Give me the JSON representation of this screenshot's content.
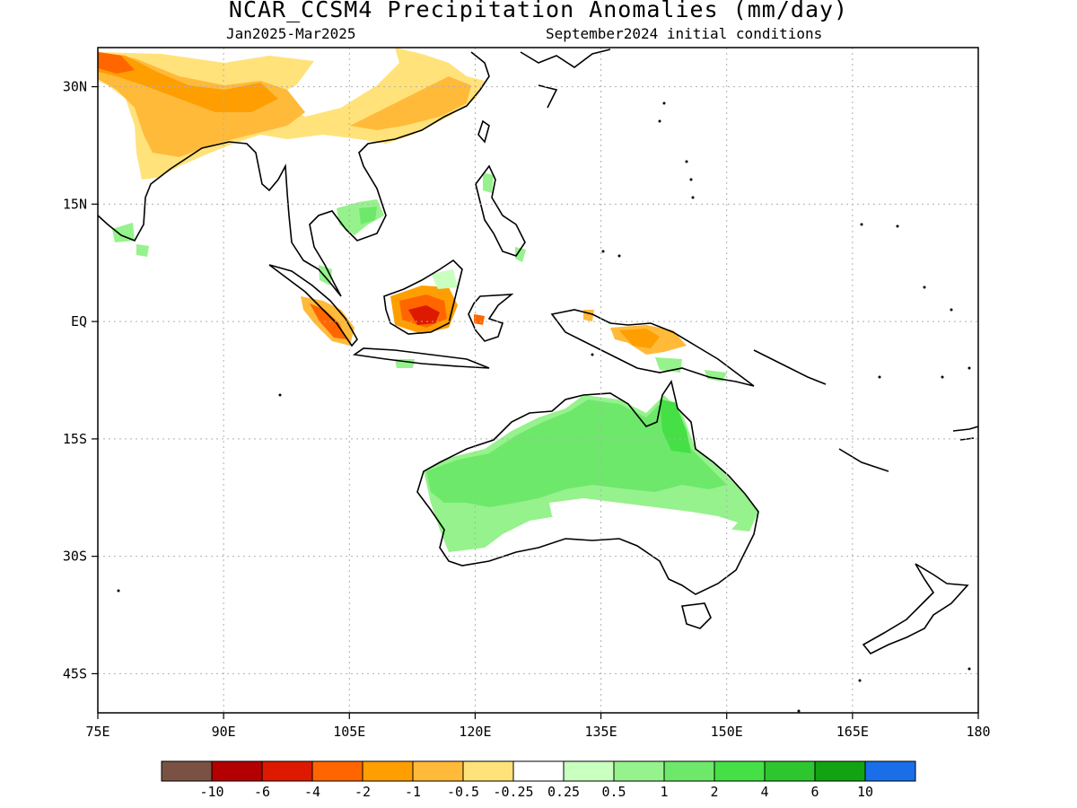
{
  "title": "NCAR_CCSM4 Precipitation Anomalies (mm/day)",
  "subtitle_left": "Jan2025-Mar2025",
  "subtitle_right": "September2024 initial conditions",
  "map": {
    "lon_range": [
      75,
      180
    ],
    "lat_range": [
      -50,
      35
    ],
    "lat_ticks": [
      {
        "value": 30,
        "label": "30N"
      },
      {
        "value": 15,
        "label": "15N"
      },
      {
        "value": 0,
        "label": "EQ"
      },
      {
        "value": -15,
        "label": "15S"
      },
      {
        "value": -30,
        "label": "30S"
      },
      {
        "value": -45,
        "label": "45S"
      }
    ],
    "lon_ticks": [
      {
        "value": 75,
        "label": "75E"
      },
      {
        "value": 90,
        "label": "90E"
      },
      {
        "value": 105,
        "label": "105E"
      },
      {
        "value": 120,
        "label": "120E"
      },
      {
        "value": 135,
        "label": "135E"
      },
      {
        "value": 150,
        "label": "150E"
      },
      {
        "value": 165,
        "label": "165E"
      },
      {
        "value": 180,
        "label": "180"
      }
    ],
    "grid": true
  },
  "colorbar": {
    "colors": [
      "#7a5244",
      "#b30000",
      "#dd1a00",
      "#ff6600",
      "#ff9e00",
      "#ffba3a",
      "#ffe27a",
      "#ffffff",
      "#c9ffbf",
      "#96f28c",
      "#6ee86a",
      "#45e045",
      "#2ec62e",
      "#12a312",
      "#1a6fe8"
    ],
    "labels": [
      "-10",
      "-6",
      "-4",
      "-2",
      "-1",
      "-0.5",
      "-0.25",
      "0.25",
      "0.5",
      "1",
      "2",
      "4",
      "6",
      "10"
    ]
  },
  "anomaly_regions": [
    {
      "name": "tibet-south-china",
      "value": -1
    },
    {
      "name": "himalaya-west",
      "value": -4
    },
    {
      "name": "sumatra",
      "value": -4
    },
    {
      "name": "borneo",
      "value": -6
    },
    {
      "name": "new-guinea",
      "value": -1
    },
    {
      "name": "indochina",
      "value": 1
    },
    {
      "name": "philippines",
      "value": 1
    },
    {
      "name": "northern-australia",
      "value": 2
    },
    {
      "name": "central-australia",
      "value": 0.5
    }
  ]
}
